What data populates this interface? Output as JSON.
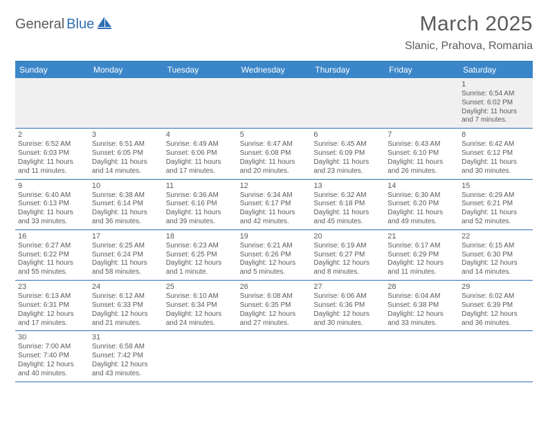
{
  "logo": {
    "text1": "General",
    "text2": "Blue"
  },
  "title": "March 2025",
  "location": "Slanic, Prahova, Romania",
  "weekdays": [
    "Sunday",
    "Monday",
    "Tuesday",
    "Wednesday",
    "Thursday",
    "Friday",
    "Saturday"
  ],
  "colors": {
    "accent": "#3b86c8",
    "border": "#2f6fb3",
    "text": "#5a5a5a",
    "bg": "#ffffff",
    "shade": "#f0f0f0"
  },
  "weeks": [
    [
      null,
      null,
      null,
      null,
      null,
      null,
      {
        "n": "1",
        "sr": "Sunrise: 6:54 AM",
        "ss": "Sunset: 6:02 PM",
        "d1": "Daylight: 11 hours",
        "d2": "and 7 minutes."
      }
    ],
    [
      {
        "n": "2",
        "sr": "Sunrise: 6:52 AM",
        "ss": "Sunset: 6:03 PM",
        "d1": "Daylight: 11 hours",
        "d2": "and 11 minutes."
      },
      {
        "n": "3",
        "sr": "Sunrise: 6:51 AM",
        "ss": "Sunset: 6:05 PM",
        "d1": "Daylight: 11 hours",
        "d2": "and 14 minutes."
      },
      {
        "n": "4",
        "sr": "Sunrise: 6:49 AM",
        "ss": "Sunset: 6:06 PM",
        "d1": "Daylight: 11 hours",
        "d2": "and 17 minutes."
      },
      {
        "n": "5",
        "sr": "Sunrise: 6:47 AM",
        "ss": "Sunset: 6:08 PM",
        "d1": "Daylight: 11 hours",
        "d2": "and 20 minutes."
      },
      {
        "n": "6",
        "sr": "Sunrise: 6:45 AM",
        "ss": "Sunset: 6:09 PM",
        "d1": "Daylight: 11 hours",
        "d2": "and 23 minutes."
      },
      {
        "n": "7",
        "sr": "Sunrise: 6:43 AM",
        "ss": "Sunset: 6:10 PM",
        "d1": "Daylight: 11 hours",
        "d2": "and 26 minutes."
      },
      {
        "n": "8",
        "sr": "Sunrise: 6:42 AM",
        "ss": "Sunset: 6:12 PM",
        "d1": "Daylight: 11 hours",
        "d2": "and 30 minutes."
      }
    ],
    [
      {
        "n": "9",
        "sr": "Sunrise: 6:40 AM",
        "ss": "Sunset: 6:13 PM",
        "d1": "Daylight: 11 hours",
        "d2": "and 33 minutes."
      },
      {
        "n": "10",
        "sr": "Sunrise: 6:38 AM",
        "ss": "Sunset: 6:14 PM",
        "d1": "Daylight: 11 hours",
        "d2": "and 36 minutes."
      },
      {
        "n": "11",
        "sr": "Sunrise: 6:36 AM",
        "ss": "Sunset: 6:16 PM",
        "d1": "Daylight: 11 hours",
        "d2": "and 39 minutes."
      },
      {
        "n": "12",
        "sr": "Sunrise: 6:34 AM",
        "ss": "Sunset: 6:17 PM",
        "d1": "Daylight: 11 hours",
        "d2": "and 42 minutes."
      },
      {
        "n": "13",
        "sr": "Sunrise: 6:32 AM",
        "ss": "Sunset: 6:18 PM",
        "d1": "Daylight: 11 hours",
        "d2": "and 45 minutes."
      },
      {
        "n": "14",
        "sr": "Sunrise: 6:30 AM",
        "ss": "Sunset: 6:20 PM",
        "d1": "Daylight: 11 hours",
        "d2": "and 49 minutes."
      },
      {
        "n": "15",
        "sr": "Sunrise: 6:29 AM",
        "ss": "Sunset: 6:21 PM",
        "d1": "Daylight: 11 hours",
        "d2": "and 52 minutes."
      }
    ],
    [
      {
        "n": "16",
        "sr": "Sunrise: 6:27 AM",
        "ss": "Sunset: 6:22 PM",
        "d1": "Daylight: 11 hours",
        "d2": "and 55 minutes."
      },
      {
        "n": "17",
        "sr": "Sunrise: 6:25 AM",
        "ss": "Sunset: 6:24 PM",
        "d1": "Daylight: 11 hours",
        "d2": "and 58 minutes."
      },
      {
        "n": "18",
        "sr": "Sunrise: 6:23 AM",
        "ss": "Sunset: 6:25 PM",
        "d1": "Daylight: 12 hours",
        "d2": "and 1 minute."
      },
      {
        "n": "19",
        "sr": "Sunrise: 6:21 AM",
        "ss": "Sunset: 6:26 PM",
        "d1": "Daylight: 12 hours",
        "d2": "and 5 minutes."
      },
      {
        "n": "20",
        "sr": "Sunrise: 6:19 AM",
        "ss": "Sunset: 6:27 PM",
        "d1": "Daylight: 12 hours",
        "d2": "and 8 minutes."
      },
      {
        "n": "21",
        "sr": "Sunrise: 6:17 AM",
        "ss": "Sunset: 6:29 PM",
        "d1": "Daylight: 12 hours",
        "d2": "and 11 minutes."
      },
      {
        "n": "22",
        "sr": "Sunrise: 6:15 AM",
        "ss": "Sunset: 6:30 PM",
        "d1": "Daylight: 12 hours",
        "d2": "and 14 minutes."
      }
    ],
    [
      {
        "n": "23",
        "sr": "Sunrise: 6:13 AM",
        "ss": "Sunset: 6:31 PM",
        "d1": "Daylight: 12 hours",
        "d2": "and 17 minutes."
      },
      {
        "n": "24",
        "sr": "Sunrise: 6:12 AM",
        "ss": "Sunset: 6:33 PM",
        "d1": "Daylight: 12 hours",
        "d2": "and 21 minutes."
      },
      {
        "n": "25",
        "sr": "Sunrise: 6:10 AM",
        "ss": "Sunset: 6:34 PM",
        "d1": "Daylight: 12 hours",
        "d2": "and 24 minutes."
      },
      {
        "n": "26",
        "sr": "Sunrise: 6:08 AM",
        "ss": "Sunset: 6:35 PM",
        "d1": "Daylight: 12 hours",
        "d2": "and 27 minutes."
      },
      {
        "n": "27",
        "sr": "Sunrise: 6:06 AM",
        "ss": "Sunset: 6:36 PM",
        "d1": "Daylight: 12 hours",
        "d2": "and 30 minutes."
      },
      {
        "n": "28",
        "sr": "Sunrise: 6:04 AM",
        "ss": "Sunset: 6:38 PM",
        "d1": "Daylight: 12 hours",
        "d2": "and 33 minutes."
      },
      {
        "n": "29",
        "sr": "Sunrise: 6:02 AM",
        "ss": "Sunset: 6:39 PM",
        "d1": "Daylight: 12 hours",
        "d2": "and 36 minutes."
      }
    ],
    [
      {
        "n": "30",
        "sr": "Sunrise: 7:00 AM",
        "ss": "Sunset: 7:40 PM",
        "d1": "Daylight: 12 hours",
        "d2": "and 40 minutes."
      },
      {
        "n": "31",
        "sr": "Sunrise: 6:58 AM",
        "ss": "Sunset: 7:42 PM",
        "d1": "Daylight: 12 hours",
        "d2": "and 43 minutes."
      },
      null,
      null,
      null,
      null,
      null
    ]
  ]
}
